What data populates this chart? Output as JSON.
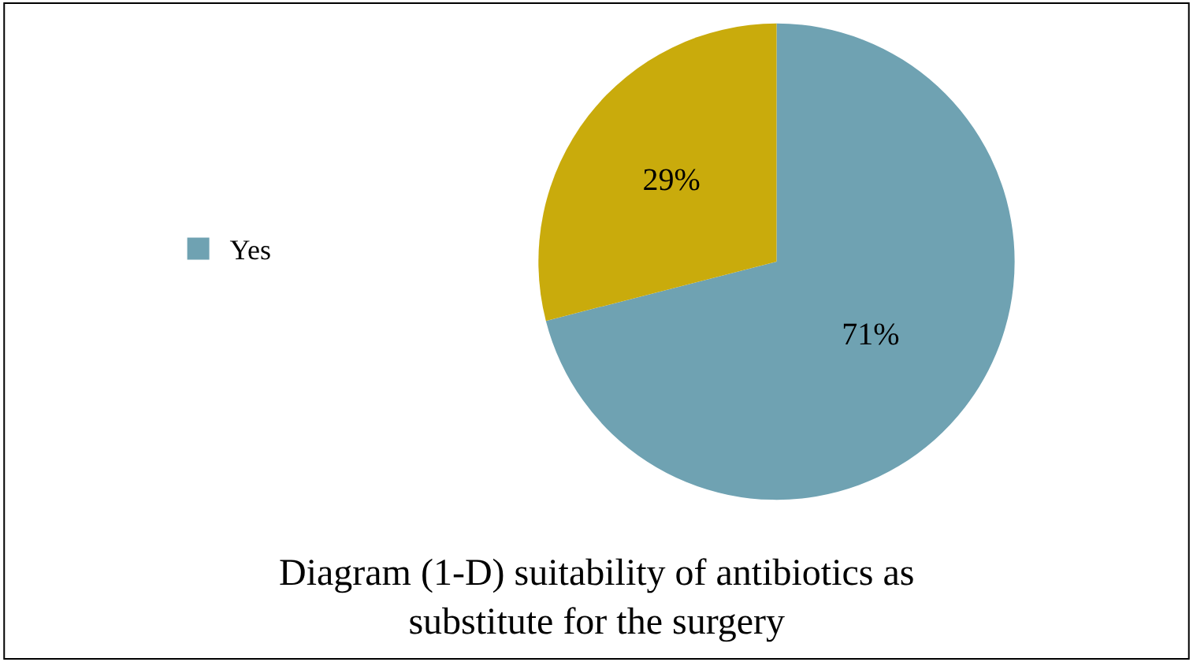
{
  "chart_data": {
    "type": "pie",
    "title": "Diagram (1-D) suitability of antibiotics as substitute for the surgery",
    "categories": [
      "Yes",
      null
    ],
    "values": [
      71,
      29
    ],
    "colors": [
      "#6fa2b2",
      "#c9ab0c"
    ],
    "value_labels": [
      "71%",
      "29%"
    ],
    "legend": "left"
  }
}
